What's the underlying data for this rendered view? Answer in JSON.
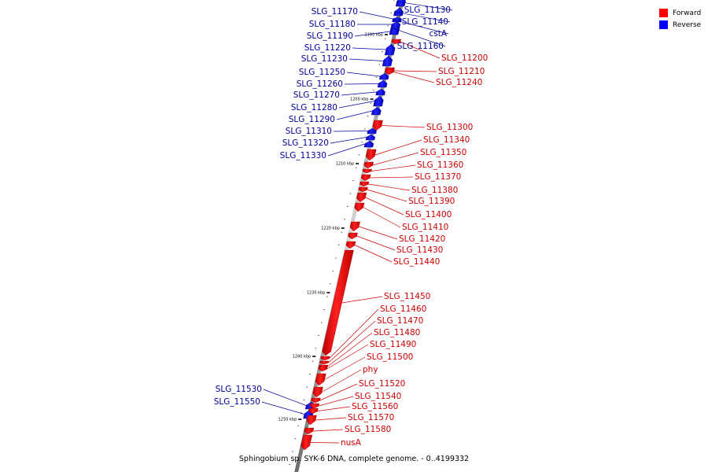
{
  "caption": "Sphingobium sp. SYK-6 DNA, complete genome. - 0..4199332",
  "legend": {
    "forward_label": "Forward",
    "reverse_label": "Reverse",
    "forward_color": "#ff0000",
    "reverse_color": "#0000ff"
  },
  "colors": {
    "forward_text": "#cc0000",
    "reverse_text": "#000099",
    "backbone": "#999999"
  },
  "scale_ticks": [
    {
      "label": "1190 kbp",
      "kbp": 1190
    },
    {
      "label": "1200 kbp",
      "kbp": 1200
    },
    {
      "label": "1210 kbp",
      "kbp": 1210
    },
    {
      "label": "1220 kbp",
      "kbp": 1220
    },
    {
      "label": "1230 kbp",
      "kbp": 1230
    },
    {
      "label": "1240 kbp",
      "kbp": 1240
    },
    {
      "label": "1250 kbp",
      "kbp": 1250
    }
  ],
  "genes": [
    {
      "name": "SLG_11130",
      "strand": "reverse"
    },
    {
      "name": "SLG_11140",
      "strand": "reverse"
    },
    {
      "name": "cstA",
      "strand": "reverse"
    },
    {
      "name": "SLG_11160",
      "strand": "reverse"
    },
    {
      "name": "SLG_11170",
      "strand": "reverse"
    },
    {
      "name": "SLG_11180",
      "strand": "reverse"
    },
    {
      "name": "SLG_11190",
      "strand": "reverse"
    },
    {
      "name": "SLG_11200",
      "strand": "forward"
    },
    {
      "name": "SLG_11210",
      "strand": "forward"
    },
    {
      "name": "SLG_11220",
      "strand": "reverse"
    },
    {
      "name": "SLG_11230",
      "strand": "reverse"
    },
    {
      "name": "SLG_11240",
      "strand": "forward"
    },
    {
      "name": "SLG_11250",
      "strand": "reverse"
    },
    {
      "name": "SLG_11260",
      "strand": "reverse"
    },
    {
      "name": "SLG_11270",
      "strand": "reverse"
    },
    {
      "name": "SLG_11280",
      "strand": "reverse"
    },
    {
      "name": "SLG_11290",
      "strand": "reverse"
    },
    {
      "name": "SLG_11300",
      "strand": "forward"
    },
    {
      "name": "SLG_11310",
      "strand": "reverse"
    },
    {
      "name": "SLG_11320",
      "strand": "reverse"
    },
    {
      "name": "SLG_11330",
      "strand": "reverse"
    },
    {
      "name": "SLG_11340",
      "strand": "forward"
    },
    {
      "name": "SLG_11350",
      "strand": "forward"
    },
    {
      "name": "SLG_11360",
      "strand": "forward"
    },
    {
      "name": "SLG_11370",
      "strand": "forward"
    },
    {
      "name": "SLG_11380",
      "strand": "forward"
    },
    {
      "name": "SLG_11390",
      "strand": "forward"
    },
    {
      "name": "SLG_11400",
      "strand": "forward"
    },
    {
      "name": "SLG_11410",
      "strand": "forward"
    },
    {
      "name": "SLG_11420",
      "strand": "forward"
    },
    {
      "name": "SLG_11430",
      "strand": "forward"
    },
    {
      "name": "SLG_11440",
      "strand": "forward"
    },
    {
      "name": "SLG_11450",
      "strand": "forward"
    },
    {
      "name": "SLG_11460",
      "strand": "forward"
    },
    {
      "name": "SLG_11470",
      "strand": "forward"
    },
    {
      "name": "SLG_11480",
      "strand": "forward"
    },
    {
      "name": "SLG_11490",
      "strand": "forward"
    },
    {
      "name": "SLG_11500",
      "strand": "forward"
    },
    {
      "name": "phy",
      "strand": "forward"
    },
    {
      "name": "SLG_11520",
      "strand": "forward"
    },
    {
      "name": "SLG_11530",
      "strand": "reverse"
    },
    {
      "name": "SLG_11540",
      "strand": "forward"
    },
    {
      "name": "SLG_11550",
      "strand": "reverse"
    },
    {
      "name": "SLG_11560",
      "strand": "forward"
    },
    {
      "name": "SLG_11570",
      "strand": "forward"
    },
    {
      "name": "SLG_11580",
      "strand": "forward"
    },
    {
      "name": "nusA",
      "strand": "forward"
    }
  ]
}
